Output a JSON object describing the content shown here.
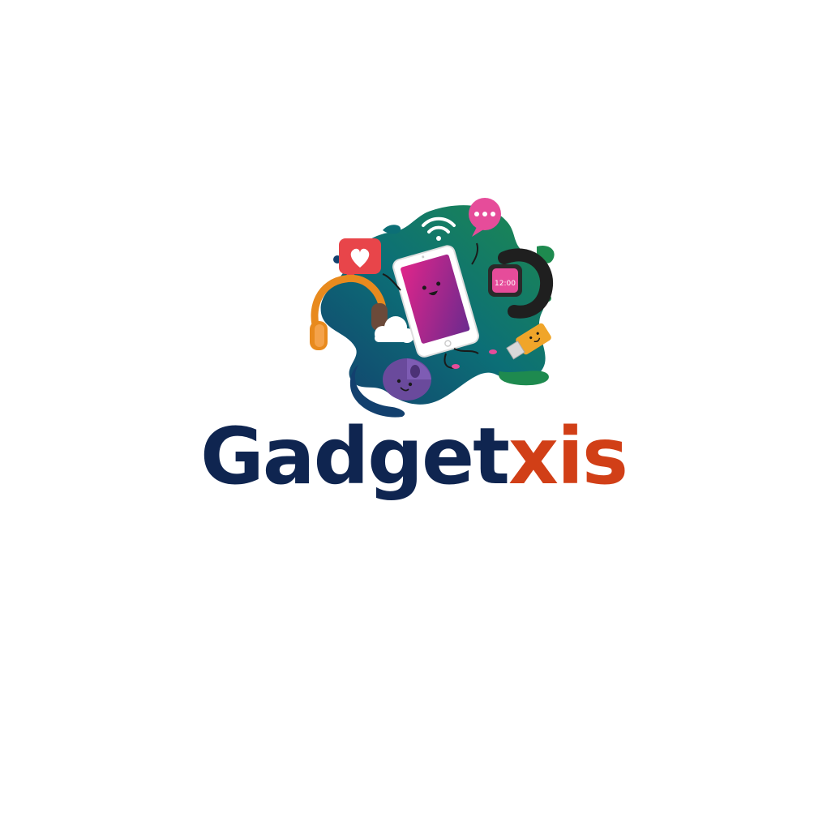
{
  "logo": {
    "wordmark_primary": "Gadget",
    "wordmark_secondary": "xis",
    "watch_time": "12:00"
  },
  "colors": {
    "background": "#ffffff",
    "wordmark_primary": "#0f2550",
    "wordmark_secondary": "#d13f17",
    "splash_teal": "#0c6f76",
    "splash_green": "#1e8a4f",
    "splash_navy": "#13406e",
    "phone_screen": "#b81e7a",
    "headphones": "#e88a1e",
    "watch_band": "#1f1f1f",
    "usb": "#f0a52a",
    "mouse": "#6a4a9c",
    "chat_bubble": "#e64c9a",
    "heart_bubble": "#e8454a"
  },
  "icons": [
    "wifi-icon",
    "chat-bubble-icon",
    "heart-bubble-icon",
    "headphones-icon",
    "phone-icon",
    "smartwatch-icon",
    "usb-drive-icon",
    "mouse-icon",
    "cloud-icon"
  ]
}
